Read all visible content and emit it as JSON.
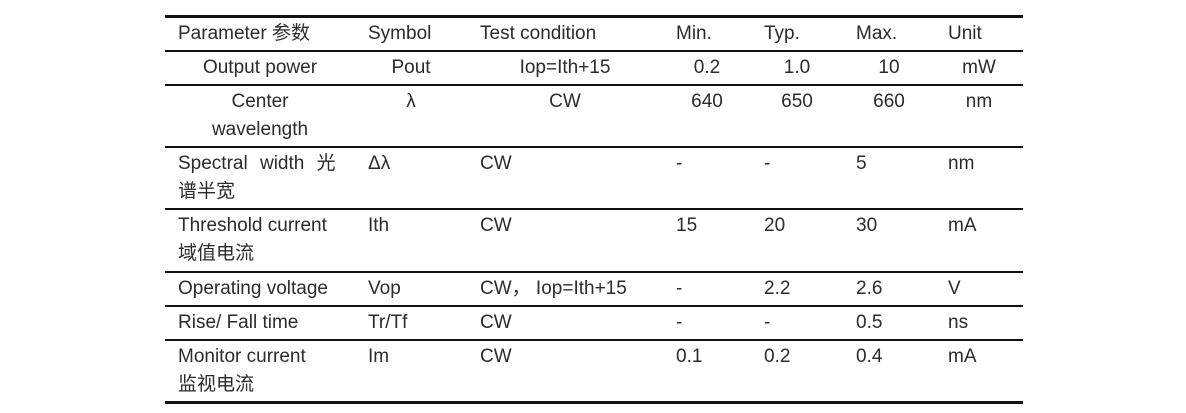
{
  "page": {
    "background_color": "#ffffff",
    "text_color": "#2b2b2b",
    "rule_color": "#111111"
  },
  "table": {
    "columns": [
      "Parameter 参数",
      "Symbol",
      "Test condition",
      "Min.",
      "Typ.",
      "Max.",
      "Unit"
    ],
    "rows": [
      [
        "Output power",
        "Pout",
        "Iop=Ith+15",
        "0.2",
        "1.0",
        "10",
        "mW"
      ],
      [
        "Center\nwavelength",
        "λ",
        "CW",
        "640",
        "650",
        "660",
        "nm"
      ],
      [
        "Spectral width 光\n谱半宽",
        "Δλ",
        "CW",
        "-",
        "-",
        "5",
        "nm"
      ],
      [
        "Threshold current\n域值电流",
        "Ith",
        "CW",
        "15",
        "20",
        "30",
        "mA"
      ],
      [
        "Operating voltage",
        "Vop",
        "CW， Iop=Ith+15",
        "-",
        "2.2",
        "2.6",
        "V"
      ],
      [
        "Rise/ Fall time",
        "Tr/Tf",
        "CW",
        "-",
        "-",
        "0.5",
        "ns"
      ],
      [
        "Monitor current\n监视电流",
        "Im",
        "CW",
        "0.1",
        "0.2",
        "0.4",
        "mA"
      ]
    ]
  }
}
